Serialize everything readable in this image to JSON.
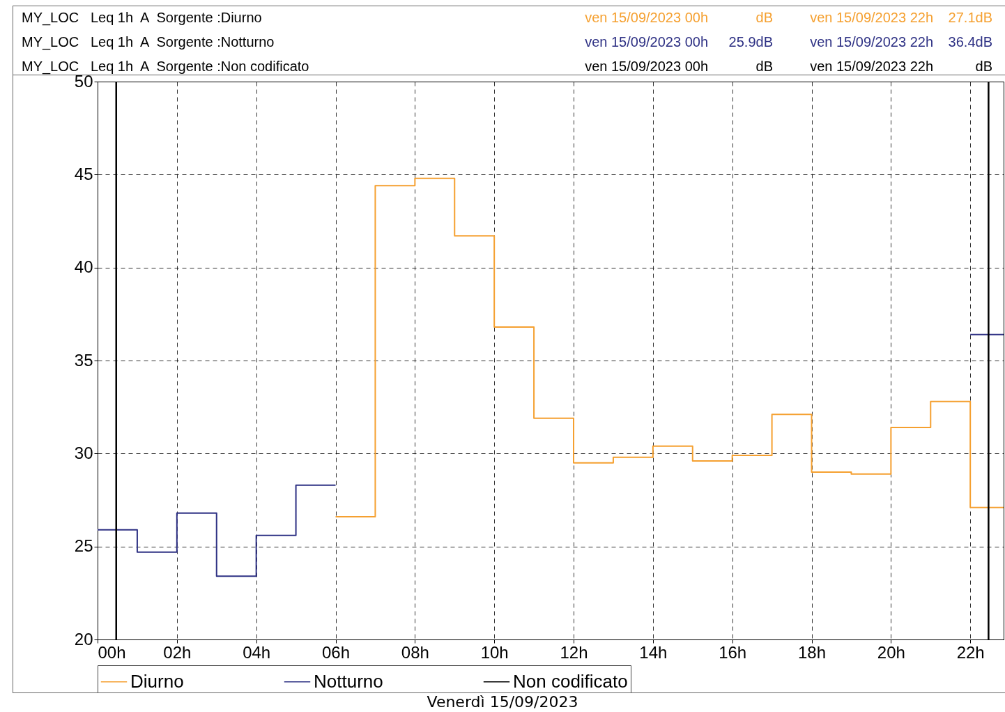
{
  "chart_data": {
    "type": "step",
    "xlabel": "Venerdì 15/09/2023",
    "annotations": [
      "MY_LOC   Leq 1h  A  Sorgente :Diurno",
      "ven 15/09/2023 00h",
      "dB",
      "ven 15/09/2023 22h",
      "27.1dB",
      "MY_LOC   Leq 1h  A  Sorgente :Notturno",
      "ven 15/09/2023 00h",
      "25.9dB",
      "ven 15/09/2023 22h",
      "36.4dB",
      "MY_LOC   Leq 1h  A  Sorgente :Non codificato",
      "ven 15/09/2023 00h",
      "dB",
      "ven 15/09/2023 22h",
      "dB"
    ],
    "x": [
      0,
      1,
      2,
      3,
      4,
      5,
      6,
      7,
      8,
      9,
      10,
      11,
      12,
      13,
      14,
      15,
      16,
      17,
      18,
      19,
      20,
      21,
      22,
      22.84
    ],
    "series": [
      {
        "name": "Diurno",
        "color": "#f5a030",
        "values": [
          null,
          null,
          null,
          null,
          null,
          null,
          26.6,
          44.4,
          44.8,
          41.7,
          36.8,
          31.9,
          29.5,
          29.8,
          30.4,
          29.6,
          29.9,
          32.1,
          29.0,
          28.9,
          31.4,
          32.8,
          27.1,
          27.1
        ]
      },
      {
        "name": "Notturno",
        "color": "#2e3184",
        "values": [
          25.9,
          24.7,
          26.8,
          23.4,
          25.6,
          28.3,
          null,
          null,
          null,
          null,
          null,
          null,
          null,
          null,
          null,
          null,
          null,
          null,
          null,
          null,
          null,
          null,
          36.4,
          36.4
        ]
      },
      {
        "name": "Non codificato",
        "color": "#000000",
        "values": [
          null,
          null,
          null,
          null,
          null,
          null,
          null,
          null,
          null,
          null,
          null,
          null,
          null,
          null,
          null,
          null,
          null,
          null,
          null,
          null,
          null,
          null,
          null,
          null
        ]
      }
    ],
    "xlim": [
      0,
      22.84
    ],
    "xticks": [
      {
        "value": 0,
        "label": "00h"
      },
      {
        "value": 2,
        "label": "02h"
      },
      {
        "value": 4,
        "label": "04h"
      },
      {
        "value": 6,
        "label": "06h"
      },
      {
        "value": 8,
        "label": "08h"
      },
      {
        "value": 10,
        "label": "10h"
      },
      {
        "value": 12,
        "label": "12h"
      },
      {
        "value": 14,
        "label": "14h"
      },
      {
        "value": 16,
        "label": "16h"
      },
      {
        "value": 18,
        "label": "18h"
      },
      {
        "value": 20,
        "label": "20h"
      },
      {
        "value": 22,
        "label": "22h"
      }
    ],
    "ylim": [
      20,
      50
    ],
    "yticks": [
      20,
      25,
      30,
      35,
      40,
      45,
      50
    ],
    "ref_lines": [
      {
        "axis": "x",
        "value": 0.47,
        "color": "#000000"
      },
      {
        "axis": "x",
        "value": 22.46,
        "color": "#000000"
      }
    ],
    "grid": true,
    "legend": "bottom"
  }
}
